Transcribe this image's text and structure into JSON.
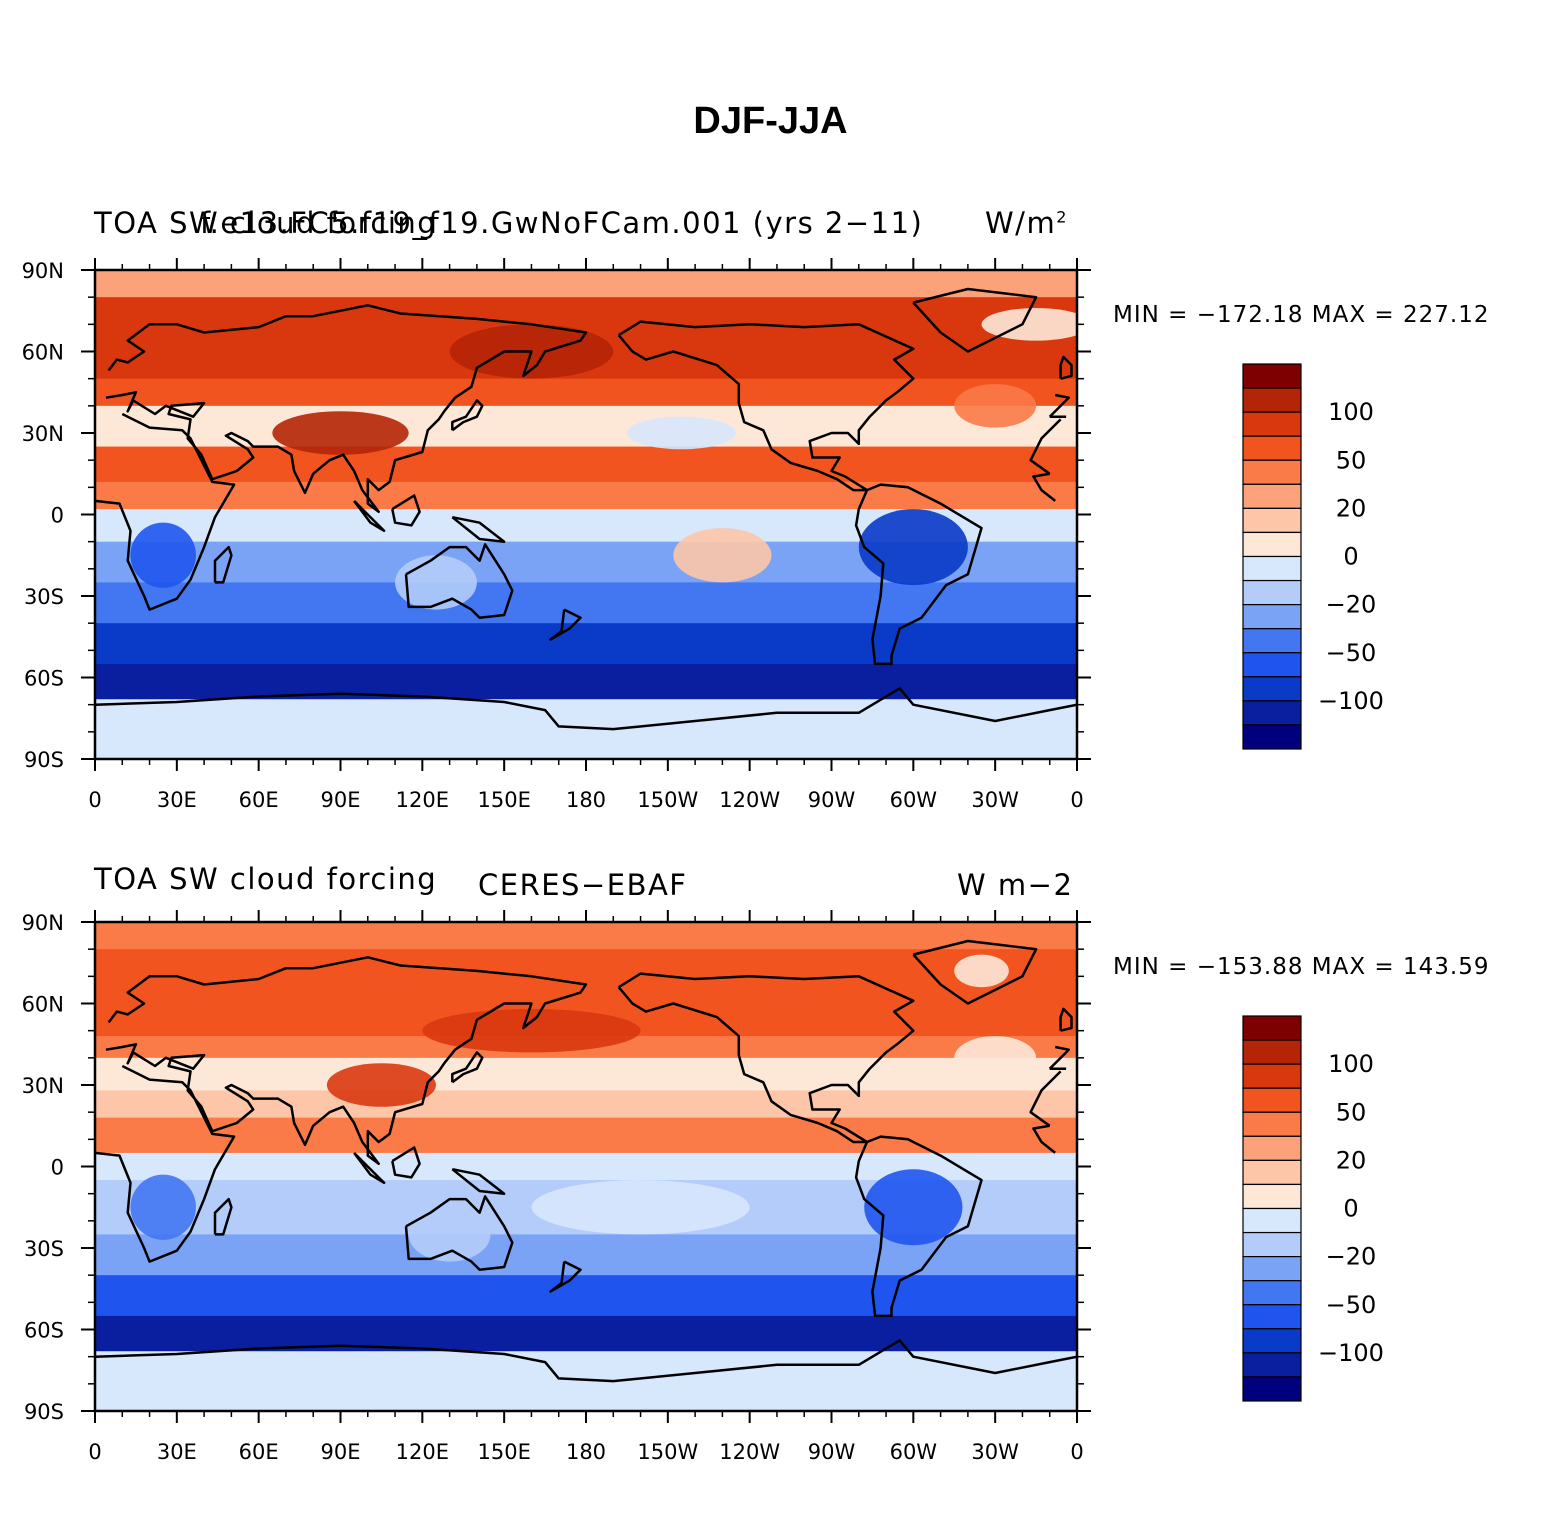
{
  "figure_title": "DJF-JJA",
  "colorbar": {
    "colors": [
      "#00007f",
      "#0a1fa0",
      "#0a3ac8",
      "#1f55ee",
      "#4377f2",
      "#7aa3f6",
      "#b3ccfa",
      "#d7e7fc",
      "#fde8d8",
      "#fdc6a8",
      "#fca27a",
      "#fa7a48",
      "#f2541f",
      "#d9380f",
      "#b42507",
      "#7f0000"
    ],
    "tick_labels": [
      "100",
      "50",
      "20",
      "0",
      "−20",
      "−50",
      "−100"
    ]
  },
  "x_tick_labels": [
    "0",
    "30E",
    "60E",
    "90E",
    "120E",
    "150E",
    "180",
    "150W",
    "120W",
    "90W",
    "60W",
    "30W",
    "0"
  ],
  "y_tick_labels": [
    "90N",
    "60N",
    "30N",
    "0",
    "30S",
    "60S",
    "90S"
  ],
  "panels": [
    {
      "left_title": "TOA SW cloud forcing",
      "center_title": "f.e13.FC5.f19_f19.GwNoFCam.001 (yrs 2−11)",
      "right_title": "W/m",
      "right_title_sup": "2",
      "min_max": "MIN = −172.18 MAX = 227.12"
    },
    {
      "left_title": "TOA SW cloud forcing",
      "center_title": "CERES−EBAF",
      "right_title": "W m−2",
      "right_title_sup": "",
      "min_max": "MIN = −153.88 MAX = 143.59"
    }
  ]
}
